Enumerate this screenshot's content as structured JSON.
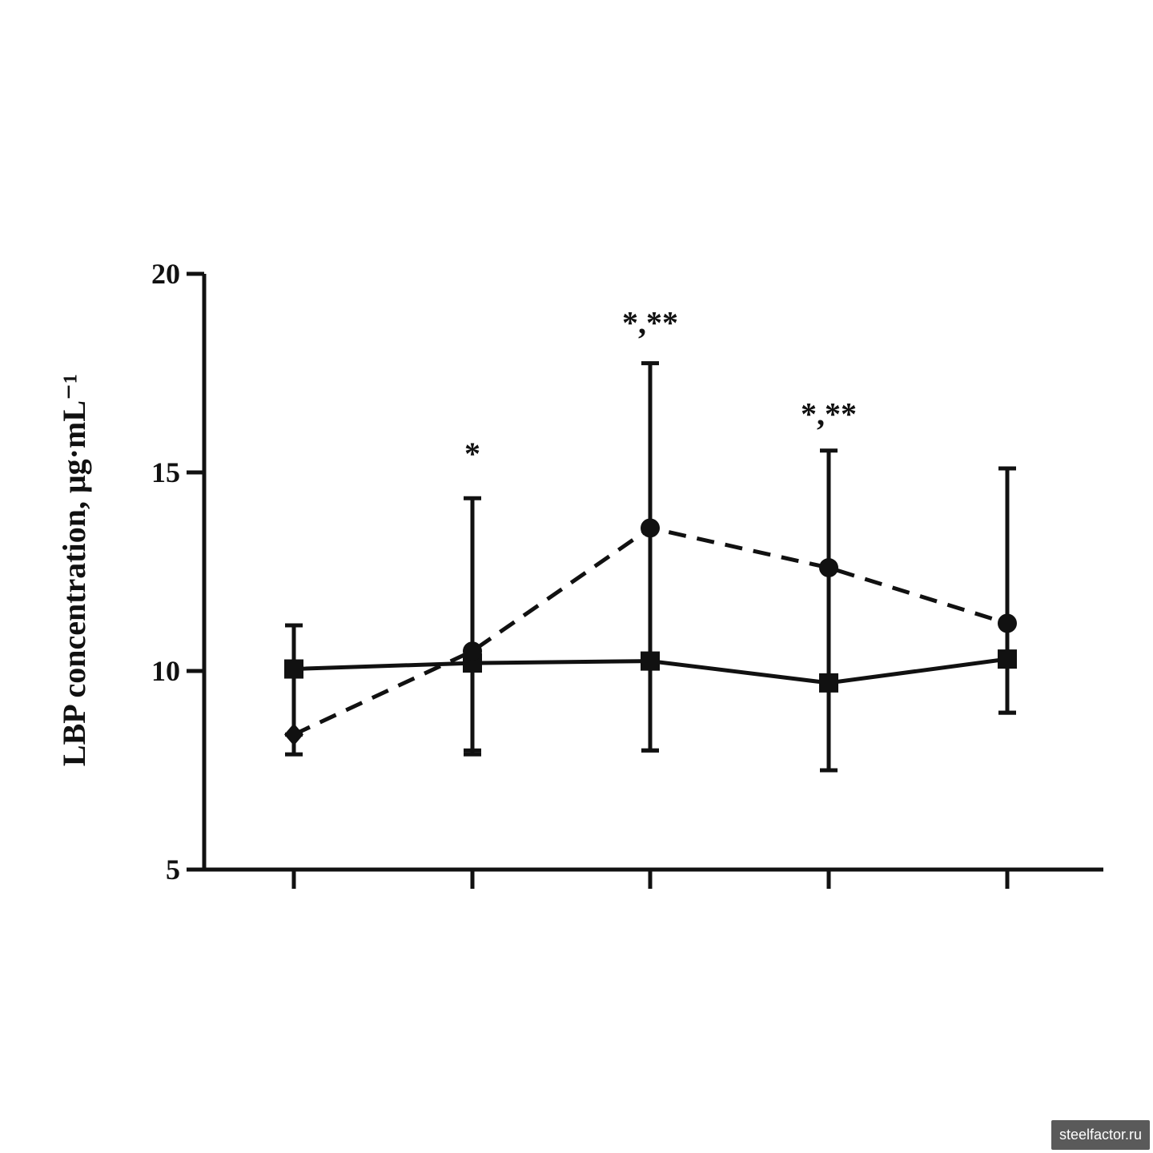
{
  "chart_data": {
    "type": "line",
    "ylabel": "LBP concentration, μg·mL⁻¹",
    "ylim": [
      5,
      20
    ],
    "yticks": [
      5,
      10,
      15,
      20
    ],
    "x": [
      1,
      2,
      3,
      4,
      5
    ],
    "grid": false,
    "series": [
      {
        "style": "solid",
        "marker": "square",
        "values": [
          10.05,
          10.2,
          10.25,
          9.7,
          10.3
        ],
        "err_low": [
          8.4,
          8.0,
          8.0,
          7.5,
          8.95
        ],
        "err_high": [
          11.15,
          10.4,
          10.3,
          9.8,
          10.35
        ]
      },
      {
        "style": "dashed",
        "marker": "circle",
        "values": [
          8.4,
          10.5,
          13.6,
          12.6,
          11.2
        ],
        "err_low": [
          7.9,
          7.9,
          8.0,
          7.5,
          8.95
        ],
        "err_high": [
          11.15,
          14.35,
          17.75,
          15.55,
          15.1
        ]
      }
    ],
    "annotations": [
      {
        "x": 2,
        "y": 15.2,
        "text": "*"
      },
      {
        "x": 3,
        "y": 18.5,
        "text": "*,**"
      },
      {
        "x": 4,
        "y": 16.2,
        "text": "*,**"
      }
    ]
  },
  "watermark": "steelfactor.ru"
}
